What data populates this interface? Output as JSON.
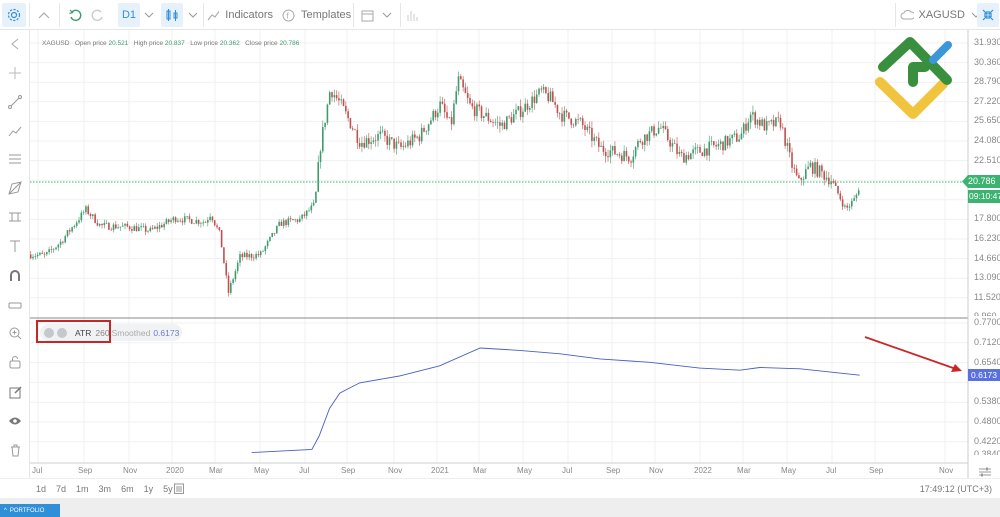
{
  "toolbar": {
    "timeframe": "D1",
    "indicators_label": "Indicators",
    "templates_label": "Templates",
    "symbol": "XAGUSD"
  },
  "legend": {
    "symbol": "XAGUSD",
    "open_label": "Open price",
    "open": "20.521",
    "high_label": "High price",
    "high": "20.837",
    "low_label": "Low price",
    "low": "20.362",
    "close_label": "Close price",
    "close": "20.786"
  },
  "indicator": {
    "name": "ATR",
    "period": "260",
    "smoothed_label": "Smoothed",
    "value": "0.6173"
  },
  "price_axis": {
    "ticks": [
      "31.930",
      "30.360",
      "28.790",
      "27.220",
      "25.650",
      "24.080",
      "22.510",
      "17.800",
      "16.230",
      "14.660",
      "13.090",
      "11.520",
      "9.960"
    ],
    "current_price": "20.786",
    "countdown": "09:10:47"
  },
  "atr_axis": {
    "ticks": [
      "0.7700",
      "0.7120",
      "0.6540",
      "0.5380",
      "0.4800",
      "0.4220",
      "0.3840"
    ],
    "current_value": "0.6173"
  },
  "time_axis": {
    "labels": [
      "Jul",
      "Sep",
      "Nov",
      "2020",
      "Mar",
      "May",
      "Jul",
      "Sep",
      "Nov",
      "2021",
      "Mar",
      "May",
      "Jul",
      "Sep",
      "Nov",
      "2022",
      "Mar",
      "May",
      "Jul",
      "Sep",
      "Nov"
    ]
  },
  "ranges": [
    "1d",
    "7d",
    "1m",
    "3m",
    "6m",
    "1y",
    "5y"
  ],
  "clock": "17:49:12 (UTC+3)",
  "portfolio_label": "PORTFOLIO",
  "colors": {
    "up": "#3f9b6e",
    "down": "#c0504d",
    "atr": "#4a5fc1",
    "accent": "#2f8fd8",
    "annotation": "#c62828",
    "price_tag": "#3cb371"
  },
  "chart_data": [
    {
      "type": "candlestick",
      "symbol": "XAGUSD",
      "timeframe": "D1",
      "ylim": [
        9.96,
        31.93
      ],
      "approx_close_path": [
        [
          "2019-06-20",
          15.0
        ],
        [
          "2019-07-10",
          14.9
        ],
        [
          "2019-08-01",
          16.0
        ],
        [
          "2019-09-05",
          18.6
        ],
        [
          "2019-09-25",
          17.3
        ],
        [
          "2019-11-05",
          17.2
        ],
        [
          "2019-12-03",
          16.9
        ],
        [
          "2020-01-07",
          17.9
        ],
        [
          "2020-02-18",
          17.6
        ],
        [
          "2020-02-25",
          18.3
        ],
        [
          "2020-03-08",
          16.5
        ],
        [
          "2020-03-19",
          11.9
        ],
        [
          "2020-04-05",
          14.8
        ],
        [
          "2020-05-03",
          15.0
        ],
        [
          "2020-05-30",
          17.5
        ],
        [
          "2020-06-27",
          17.8
        ],
        [
          "2020-07-17",
          19.0
        ],
        [
          "2020-07-24",
          23.5
        ],
        [
          "2020-08-08",
          28.3
        ],
        [
          "2020-08-22",
          27.0
        ],
        [
          "2020-09-19",
          24.0
        ],
        [
          "2020-10-16",
          24.5
        ],
        [
          "2020-11-13",
          23.5
        ],
        [
          "2020-12-10",
          24.5
        ],
        [
          "2021-01-08",
          27.0
        ],
        [
          "2021-01-22",
          25.2
        ],
        [
          "2021-02-02",
          29.0
        ],
        [
          "2021-02-19",
          26.8
        ],
        [
          "2021-03-30",
          25.3
        ],
        [
          "2021-04-27",
          26.5
        ],
        [
          "2021-05-25",
          28.0
        ],
        [
          "2021-06-08",
          27.5
        ],
        [
          "2021-06-22",
          26.2
        ],
        [
          "2021-07-19",
          25.5
        ],
        [
          "2021-08-16",
          23.5
        ],
        [
          "2021-09-27",
          22.8
        ],
        [
          "2021-10-10",
          24.2
        ],
        [
          "2021-11-07",
          25.2
        ],
        [
          "2021-12-05",
          22.8
        ],
        [
          "2022-01-02",
          23.3
        ],
        [
          "2022-01-30",
          23.8
        ],
        [
          "2022-02-27",
          24.5
        ],
        [
          "2022-03-10",
          26.2
        ],
        [
          "2022-04-01",
          25.2
        ],
        [
          "2022-04-21",
          25.6
        ],
        [
          "2022-05-05",
          22.4
        ],
        [
          "2022-05-15",
          20.8
        ],
        [
          "2022-06-02",
          22.1
        ],
        [
          "2022-06-30",
          21.0
        ],
        [
          "2022-07-20",
          18.6
        ],
        [
          "2022-08-03",
          19.5
        ],
        [
          "2022-08-10",
          20.786
        ]
      ]
    },
    {
      "type": "line",
      "name": "ATR 260 Smoothed",
      "ylim": [
        0.384,
        0.77
      ],
      "points": [
        [
          "2020-04-22",
          0.391
        ],
        [
          "2020-07-14",
          0.4
        ],
        [
          "2020-07-24",
          0.44
        ],
        [
          "2020-08-08",
          0.52
        ],
        [
          "2020-08-22",
          0.565
        ],
        [
          "2020-09-19",
          0.595
        ],
        [
          "2020-11-13",
          0.615
        ],
        [
          "2021-01-08",
          0.645
        ],
        [
          "2021-03-03",
          0.697
        ],
        [
          "2021-04-27",
          0.69
        ],
        [
          "2021-06-22",
          0.68
        ],
        [
          "2021-08-16",
          0.665
        ],
        [
          "2021-10-24",
          0.655
        ],
        [
          "2022-01-02",
          0.638
        ],
        [
          "2022-02-27",
          0.632
        ],
        [
          "2022-03-24",
          0.64
        ],
        [
          "2022-05-19",
          0.636
        ],
        [
          "2022-08-10",
          0.6173
        ]
      ]
    }
  ]
}
